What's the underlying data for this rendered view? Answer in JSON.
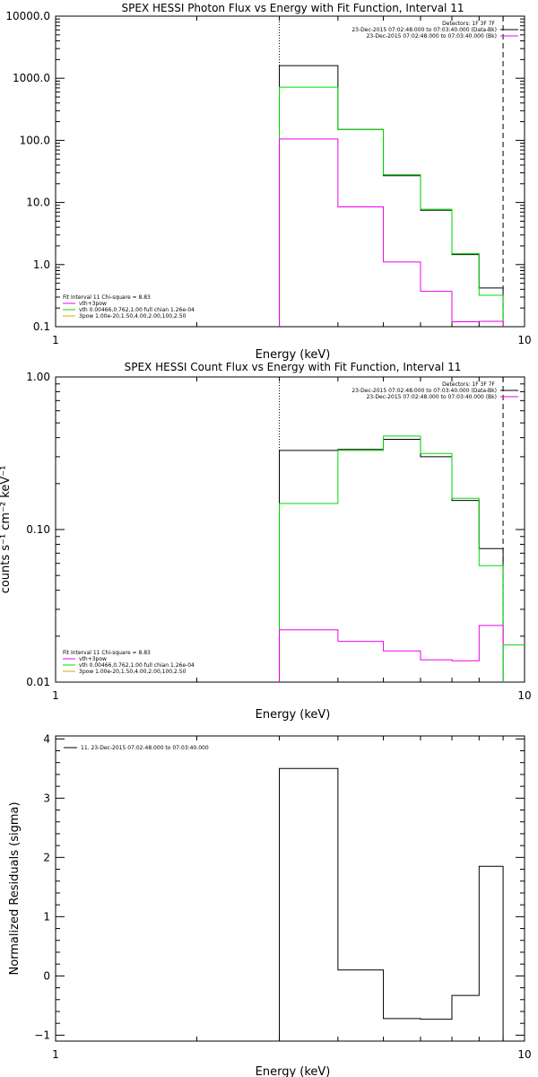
{
  "chart_data": [
    {
      "id": "photon",
      "type": "line",
      "title": "SPEX HESSI Photon Flux vs Energy with Fit Function, Interval 11",
      "xlabel": "Energy (keV)",
      "ylabel": "",
      "xscale": "log",
      "yscale": "log",
      "xlim": [
        1,
        10
      ],
      "ylim": [
        0.1,
        10000
      ],
      "x_ticks": [
        {
          "value": 1,
          "label": "1"
        },
        {
          "value": 10,
          "label": "10"
        }
      ],
      "y_ticks": [
        {
          "value": 0.1,
          "label": "0.1"
        },
        {
          "value": 1,
          "label": "1.0"
        },
        {
          "value": 10,
          "label": "10.0"
        },
        {
          "value": 100,
          "label": "100.0"
        },
        {
          "value": 1000,
          "label": "1000.0"
        },
        {
          "value": 10000,
          "label": "10000.0"
        }
      ],
      "energy_edges": [
        3,
        4,
        5,
        6,
        7,
        8,
        9
      ],
      "fit_range_lines": [
        {
          "x": 3,
          "style": "dotted"
        },
        {
          "x": 9,
          "style": "dashed"
        }
      ],
      "series": [
        {
          "color": "#000000",
          "values": [
            1600,
            150,
            27,
            7.5,
            1.45,
            0.42
          ]
        },
        {
          "color": "#00dd00",
          "values": [
            720,
            150,
            28,
            7.8,
            1.5,
            0.32
          ]
        },
        {
          "color": "#ee00ee",
          "values": [
            105,
            8.5,
            1.1,
            0.37,
            0.12,
            0.122
          ]
        }
      ],
      "legend_top": {
        "header": "Detectors: 1F 3F 7F",
        "lines": [
          {
            "text": "23-Dec-2015 07:02:48.000 to 07:03:40.000 (Data-Bk)",
            "color": "#000000"
          },
          {
            "text": "23-Dec-2015 07:02:48.000 to 07:03:40.000 (Bk)",
            "color": "#ee00ee"
          }
        ]
      },
      "legend_bottom": {
        "header": "Fit Interval 11   Chi-square = 8.83",
        "lines": [
          {
            "text": "vth+3pow",
            "color": "#ee00ee"
          },
          {
            "text": "vth 0.00466,0.762,1.00   full chian 1.26e-04",
            "color": "#00dd00"
          },
          {
            "text": "3pow 1.00e-20,1.50,4.00,2.00,100,2.50",
            "color": "#ddaa00"
          }
        ]
      }
    },
    {
      "id": "count",
      "type": "line",
      "title": "SPEX HESSI Count Flux vs Energy with Fit Function, Interval 11",
      "xlabel": "Energy (keV)",
      "ylabel": "counts s⁻¹ cm⁻² keV⁻¹",
      "xscale": "log",
      "yscale": "log",
      "xlim": [
        1,
        10
      ],
      "ylim": [
        0.01,
        1
      ],
      "x_ticks": [
        {
          "value": 1,
          "label": "1"
        },
        {
          "value": 10,
          "label": "10"
        }
      ],
      "y_ticks": [
        {
          "value": 0.01,
          "label": "0.01"
        },
        {
          "value": 0.1,
          "label": "0.10"
        },
        {
          "value": 1,
          "label": "1.00"
        }
      ],
      "energy_edges": [
        3,
        4,
        5,
        6,
        7,
        8,
        9
      ],
      "fit_range_lines": [
        {
          "x": 3,
          "style": "dotted"
        },
        {
          "x": 9,
          "style": "dashed"
        }
      ],
      "series": [
        {
          "color": "#000000",
          "values": [
            0.33,
            0.335,
            0.39,
            0.3,
            0.155,
            0.075
          ]
        },
        {
          "color": "#00dd00",
          "values": [
            0.148,
            0.33,
            0.41,
            0.315,
            0.16,
            0.058
          ]
        },
        {
          "color": "#ee00ee",
          "values": [
            0.022,
            0.0185,
            0.016,
            0.014,
            0.0138,
            0.0235
          ]
        }
      ],
      "extra_series": [
        {
          "color": "#00dd00",
          "x": [
            9,
            10
          ],
          "values": [
            0.0175
          ]
        }
      ],
      "legend_top": {
        "header": "Detectors: 1F 3F 7F",
        "lines": [
          {
            "text": "23-Dec-2015 07:02:48.000 to 07:03:40.000 (Data-Bk)",
            "color": "#000000"
          },
          {
            "text": "23-Dec-2015 07:02:48.000 to 07:03:40.000 (Bk)",
            "color": "#ee00ee"
          }
        ]
      },
      "legend_bottom": {
        "header": "Fit Interval 11   Chi-square = 8.83",
        "lines": [
          {
            "text": "vth+3pow",
            "color": "#ee00ee"
          },
          {
            "text": "vth 0.00466,0.762,1.00   full chian 1.26e-04",
            "color": "#00dd00"
          },
          {
            "text": "3pow 1.00e-20,1.50,4.00,2.00,100,2.50",
            "color": "#ddaa00"
          }
        ]
      }
    },
    {
      "id": "residuals",
      "type": "line",
      "title": "",
      "xlabel": "Energy (keV)",
      "ylabel": "Normalized Residuals (sigma)",
      "xscale": "log",
      "yscale": "linear",
      "xlim": [
        1,
        10
      ],
      "ylim": [
        -1.1,
        4.05
      ],
      "x_ticks": [
        {
          "value": 1,
          "label": "1"
        },
        {
          "value": 10,
          "label": "10"
        }
      ],
      "y_ticks": [
        {
          "value": -1,
          "label": "−1"
        },
        {
          "value": 0,
          "label": "0"
        },
        {
          "value": 1,
          "label": "1"
        },
        {
          "value": 2,
          "label": "2"
        },
        {
          "value": 3,
          "label": "3"
        },
        {
          "value": 4,
          "label": "4"
        }
      ],
      "energy_edges": [
        3,
        4,
        5,
        6,
        7,
        8,
        9
      ],
      "series": [
        {
          "color": "#000000",
          "values": [
            3.5,
            0.1,
            -0.72,
            -0.73,
            -0.33,
            1.85
          ]
        }
      ],
      "legend_top": {
        "header": "",
        "lines": [
          {
            "text": "11. 23-Dec-2015 07:02:48.000 to 07:03:40.000",
            "color": "#000000"
          }
        ]
      }
    }
  ]
}
